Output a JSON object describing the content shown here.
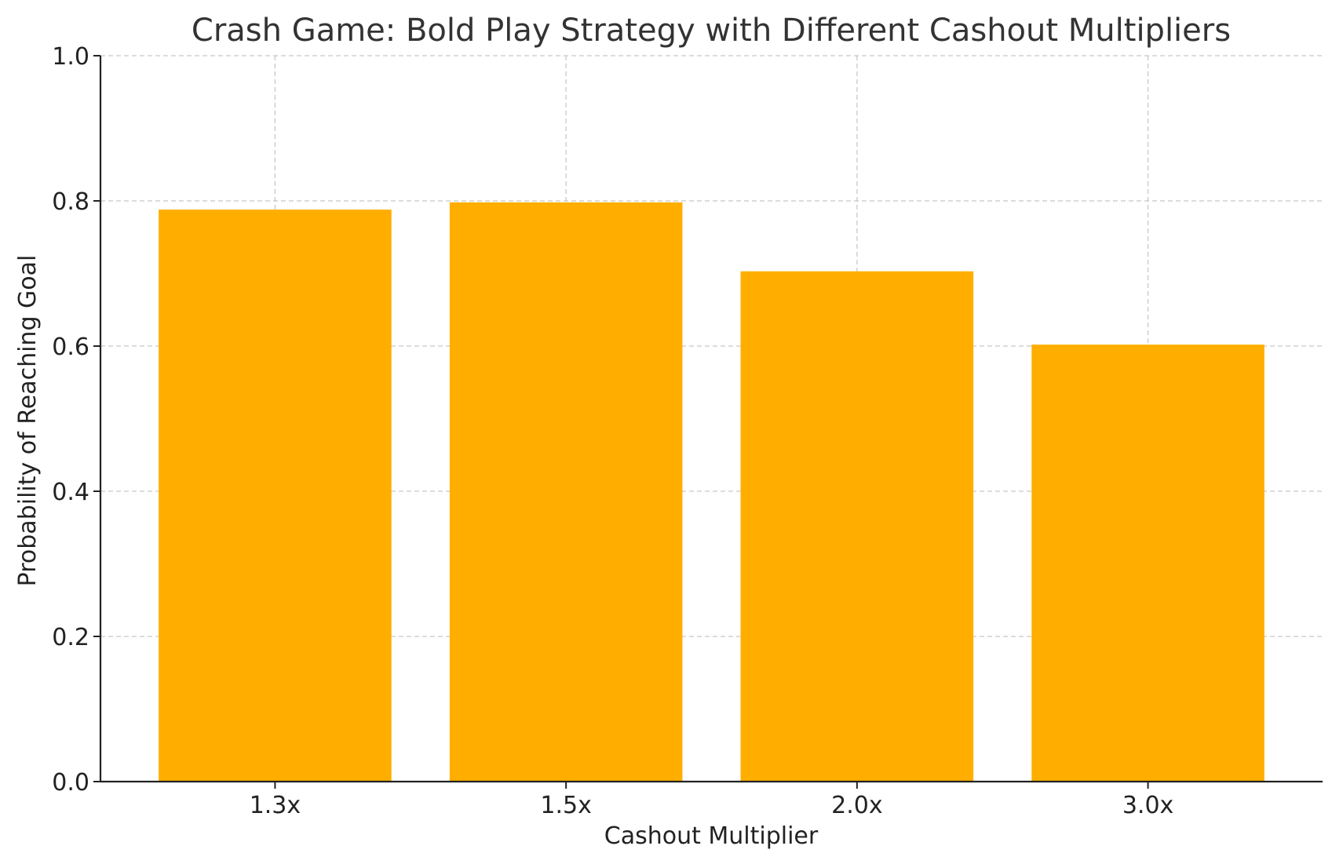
{
  "chart_data": {
    "type": "bar",
    "title": "Crash Game: Bold Play Strategy with Different Cashout Multipliers",
    "xlabel": "Cashout Multiplier",
    "ylabel": "Probability of Reaching Goal",
    "categories": [
      "1.3x",
      "1.5x",
      "2.0x",
      "3.0x"
    ],
    "values": [
      0.788,
      0.798,
      0.703,
      0.602
    ],
    "ylim": [
      0,
      1.0
    ],
    "yticks": [
      "0.0",
      "0.2",
      "0.4",
      "0.6",
      "0.8",
      "1.0"
    ],
    "grid": true,
    "bar_color": "#FFAE00"
  }
}
